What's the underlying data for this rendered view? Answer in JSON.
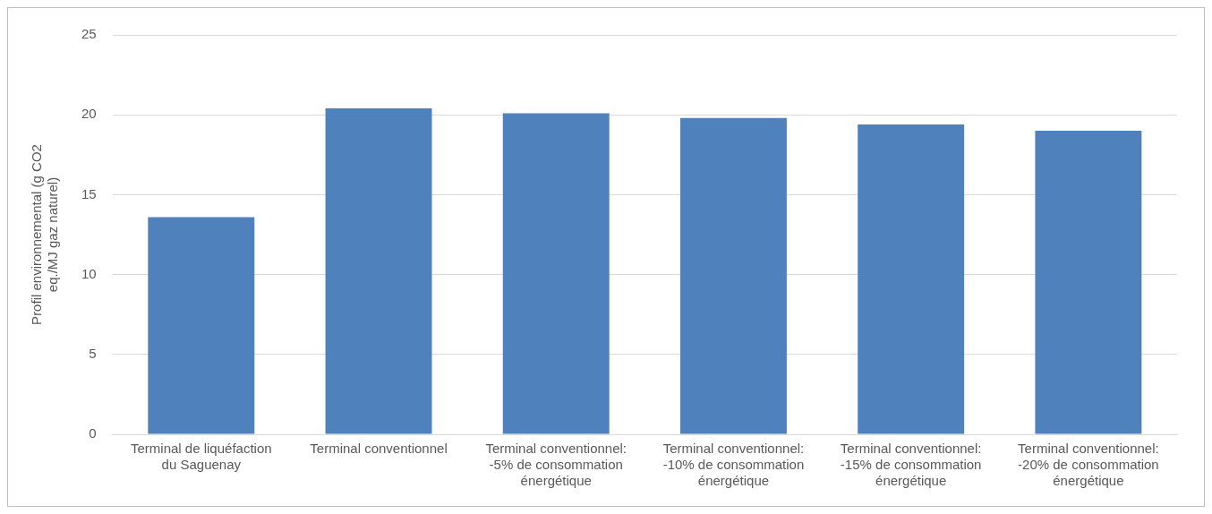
{
  "chart_data": {
    "type": "bar",
    "ylabel": "Profil environnemental (g CO2 eq./MJ gaz naturel)",
    "categories": [
      "Terminal de liquéfaction du Saguenay",
      "Terminal conventionnel",
      "Terminal conventionnel: -5% de consommation énergétique",
      "Terminal conventionnel: -10% de consommation énergétique",
      "Terminal conventionnel: -15% de consommation énergétique",
      "Terminal conventionnel: -20% de consommation énergétique"
    ],
    "values": [
      13.6,
      20.4,
      20.1,
      19.8,
      19.4,
      19.0
    ],
    "color": "#4f81bd",
    "ylim": [
      0,
      25
    ],
    "yticks": [
      0,
      5,
      10,
      15,
      20,
      25
    ],
    "grid": "y",
    "legend": false
  }
}
